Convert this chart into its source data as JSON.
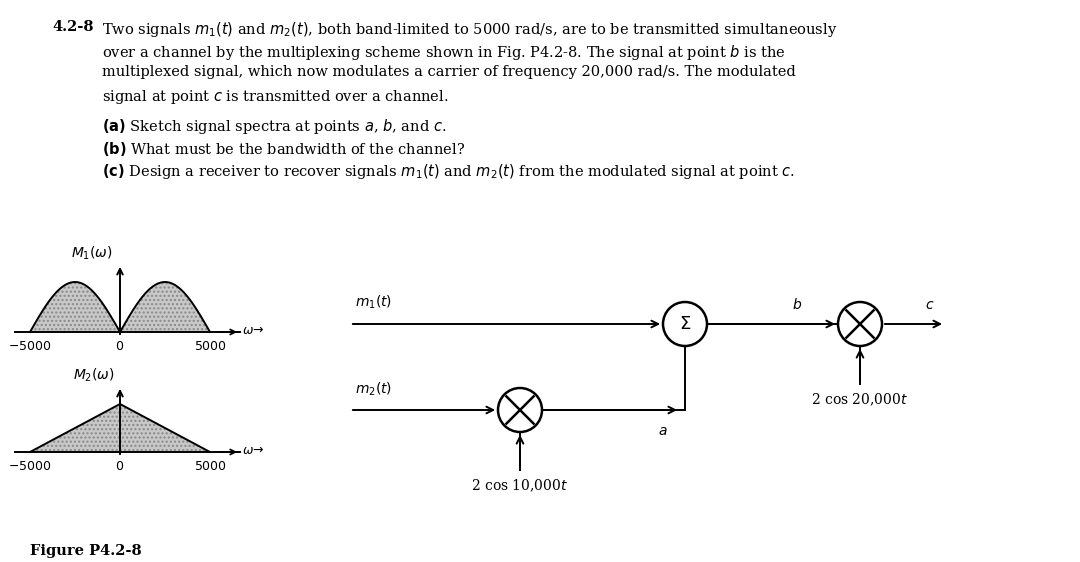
{
  "bg_color": "#ffffff",
  "fig_width": 10.8,
  "fig_height": 5.62,
  "dpi": 100,
  "text_lines": [
    "Two signals $m_1(t)$ and $m_2(t)$, both band-limited to 5000 rad/s, are to be transmitted simultaneously",
    "over a channel by the multiplexing scheme shown in Fig. P4.2-8. The signal at point $b$ is the",
    "multiplexed signal, which now modulates a carrier of frequency 20,000 rad/s. The modulated",
    "signal at point $c$ is transmitted over a channel."
  ],
  "part_a": "(\\textbf{a}) Sketch signal spectra at points $a$, $b$, and $c$.",
  "part_b": "(\\textbf{b}) What must be the bandwidth of the channel?",
  "part_c": "(\\textbf{c}) Design a receiver to recover signals $m_1(t)$ and $m_2(t)$ from the modulated signal at point $c$.",
  "number": "4.2-8",
  "figure_label": "Figure P4.2-8",
  "hatch_color": "#888888",
  "fill_color": "#c8c8c8"
}
